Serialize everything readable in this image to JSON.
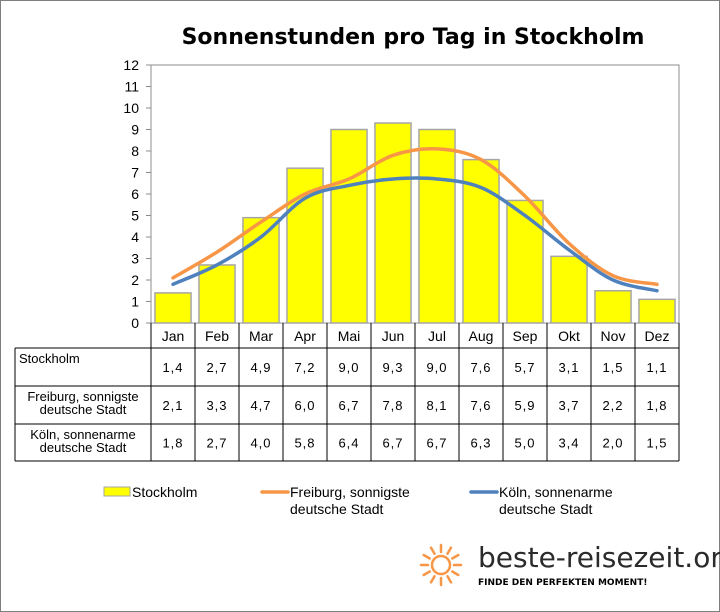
{
  "chart_data": {
    "type": "bar",
    "title": "Sonnenstunden pro Tag in Stockholm",
    "categories": [
      "Jan",
      "Feb",
      "Mar",
      "Apr",
      "Mai",
      "Jun",
      "Jul",
      "Aug",
      "Sep",
      "Okt",
      "Nov",
      "Dez"
    ],
    "ylim": [
      0,
      12
    ],
    "yticks": [
      "0",
      "1",
      "2",
      "3",
      "4",
      "5",
      "6",
      "7",
      "8",
      "9",
      "10",
      "11",
      "12"
    ],
    "grid": false,
    "legend_position": "bottom",
    "series": [
      {
        "name": "Stockholm",
        "table_label": [
          "Stockholm"
        ],
        "render": "bar",
        "color": "#ffff00",
        "edge_color": "#a6a6a6",
        "values": [
          1.4,
          2.7,
          4.9,
          7.2,
          9.0,
          9.3,
          9.0,
          7.6,
          5.7,
          3.1,
          1.5,
          1.1
        ],
        "labels": [
          "1,4",
          "2,7",
          "4,9",
          "7,2",
          "9,0",
          "9,3",
          "9,0",
          "7,6",
          "5,7",
          "3,1",
          "1,5",
          "1,1"
        ]
      },
      {
        "name": "Freiburg, sonnigste deutsche Stadt",
        "table_label": [
          "Freiburg, sonnigste",
          "deutsche Stadt"
        ],
        "render": "line",
        "color": "#f79646",
        "values": [
          2.1,
          3.3,
          4.7,
          6.0,
          6.7,
          7.8,
          8.1,
          7.6,
          5.9,
          3.7,
          2.2,
          1.8
        ],
        "labels": [
          "2,1",
          "3,3",
          "4,7",
          "6,0",
          "6,7",
          "7,8",
          "8,1",
          "7,6",
          "5,9",
          "3,7",
          "2,2",
          "1,8"
        ]
      },
      {
        "name": "Köln, sonnenarme deutsche Stadt",
        "table_label": [
          "Köln, sonnenarme",
          "deutsche Stadt"
        ],
        "render": "line",
        "color": "#4f81bd",
        "values": [
          1.8,
          2.7,
          4.0,
          5.8,
          6.4,
          6.7,
          6.7,
          6.3,
          5.0,
          3.4,
          2.0,
          1.5
        ],
        "labels": [
          "1,8",
          "2,7",
          "4,0",
          "5,8",
          "6,4",
          "6,7",
          "6,7",
          "6,3",
          "5,0",
          "3,4",
          "2,0",
          "1,5"
        ]
      }
    ],
    "legend": [
      {
        "lines": [
          "Stockholm"
        ]
      },
      {
        "lines": [
          "Freiburg, sonnigste",
          "deutsche Stadt"
        ]
      },
      {
        "lines": [
          "Köln, sonnenarme",
          "deutsche Stadt"
        ]
      }
    ]
  },
  "branding": {
    "site": "beste-reisezeit.org",
    "tagline": "FINDE DEN PERFEKTEN MOMENT!",
    "logo_icon": "sun-icon",
    "logo_color": "#f79646"
  }
}
